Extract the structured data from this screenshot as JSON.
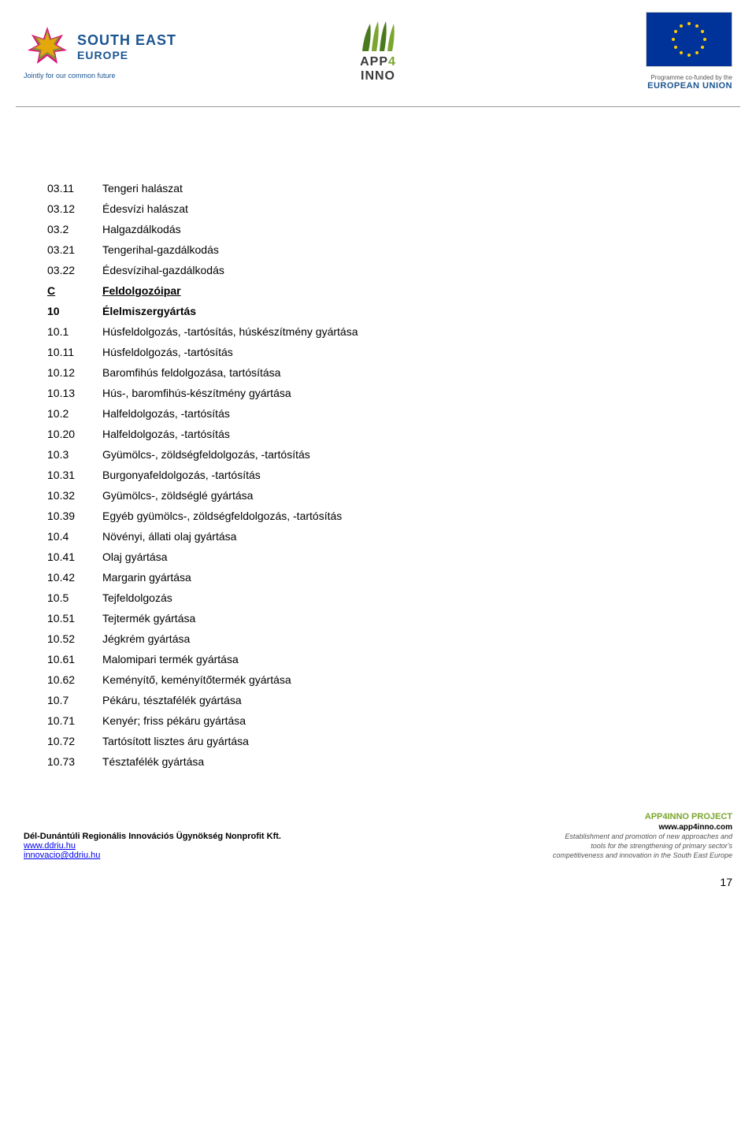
{
  "header": {
    "southeast": {
      "line1": "SOUTH EAST",
      "line2": "EUROPE",
      "tagline": "Jointly for our common future"
    },
    "app4inno": {
      "app": "APP",
      "four": "4",
      "inno": "INNO"
    },
    "eu": {
      "cofunded": "Programme co-funded by the",
      "name": "EUROPEAN UNION"
    }
  },
  "rows": [
    {
      "code": "03.11",
      "text": "Tengeri halászat",
      "type": "item"
    },
    {
      "code": "03.12",
      "text": "Édesvízi halászat",
      "type": "item"
    },
    {
      "code": "03.2",
      "text": "Halgazdálkodás",
      "type": "item"
    },
    {
      "code": "03.21",
      "text": "Tengerihal-gazdálkodás",
      "type": "item"
    },
    {
      "code": "03.22",
      "text": "Édesvízihal-gazdálkodás",
      "type": "item"
    },
    {
      "code": "C",
      "text": "Feldolgozóipar",
      "type": "section"
    },
    {
      "code": "10",
      "text": "Élelmiszergyártás",
      "type": "bold"
    },
    {
      "code": "10.1",
      "text": "Húsfeldolgozás, -tartósítás, húskészítmény gyártása",
      "type": "item"
    },
    {
      "code": "10.11",
      "text": "Húsfeldolgozás, -tartósítás",
      "type": "item"
    },
    {
      "code": "10.12",
      "text": "Baromfihús feldolgozása, tartósítása",
      "type": "item"
    },
    {
      "code": "10.13",
      "text": "Hús-, baromfihús-készítmény gyártása",
      "type": "item"
    },
    {
      "code": "10.2",
      "text": "Halfeldolgozás, -tartósítás",
      "type": "item"
    },
    {
      "code": "10.20",
      "text": "Halfeldolgozás, -tartósítás",
      "type": "item"
    },
    {
      "code": "10.3",
      "text": "Gyümölcs-, zöldségfeldolgozás, -tartósítás",
      "type": "item"
    },
    {
      "code": "10.31",
      "text": "Burgonyafeldolgozás, -tartósítás",
      "type": "item"
    },
    {
      "code": "10.32",
      "text": "Gyümölcs-, zöldséglé gyártása",
      "type": "item"
    },
    {
      "code": "10.39",
      "text": "Egyéb gyümölcs-, zöldségfeldolgozás, -tartósítás",
      "type": "item"
    },
    {
      "code": "10.4",
      "text": "Növényi, állati olaj gyártása",
      "type": "item"
    },
    {
      "code": "10.41",
      "text": "Olaj gyártása",
      "type": "item"
    },
    {
      "code": "10.42",
      "text": "Margarin gyártása",
      "type": "item"
    },
    {
      "code": "10.5",
      "text": "Tejfeldolgozás",
      "type": "item"
    },
    {
      "code": "10.51",
      "text": "Tejtermék gyártása",
      "type": "item"
    },
    {
      "code": "10.52",
      "text": "Jégkrém gyártása",
      "type": "item"
    },
    {
      "code": "10.61",
      "text": "Malomipari termék gyártása",
      "type": "item"
    },
    {
      "code": "10.62",
      "text": "Keményítő, keményítőtermék gyártása",
      "type": "item"
    },
    {
      "code": "10.7",
      "text": "Pékáru, tésztafélék gyártása",
      "type": "item"
    },
    {
      "code": "10.71",
      "text": "Kenyér; friss pékáru gyártása",
      "type": "item"
    },
    {
      "code": "10.72",
      "text": "Tartósított lisztes áru gyártása",
      "type": "item"
    },
    {
      "code": "10.73",
      "text": "Tésztafélék gyártása",
      "type": "item"
    }
  ],
  "footer": {
    "org": "Dél-Dunántúli Regionális Innovációs Ügynökség Nonprofit Kft.",
    "url": "www.ddriu.hu",
    "email": "innovacio@ddriu.hu",
    "project": "APP4INNO PROJECT",
    "proj_url": "www.app4inno.com",
    "line1": "Establishment and promotion of new approaches    and",
    "line2": "tools for the strengthening of primary sector's",
    "line3": "competitiveness  and innovation in the South East Europe"
  },
  "page_num": "17",
  "colors": {
    "se_blue": "#1a5490",
    "app_green": "#7aa52e",
    "eu_blue": "#003399",
    "eu_gold": "#ffcc00"
  }
}
